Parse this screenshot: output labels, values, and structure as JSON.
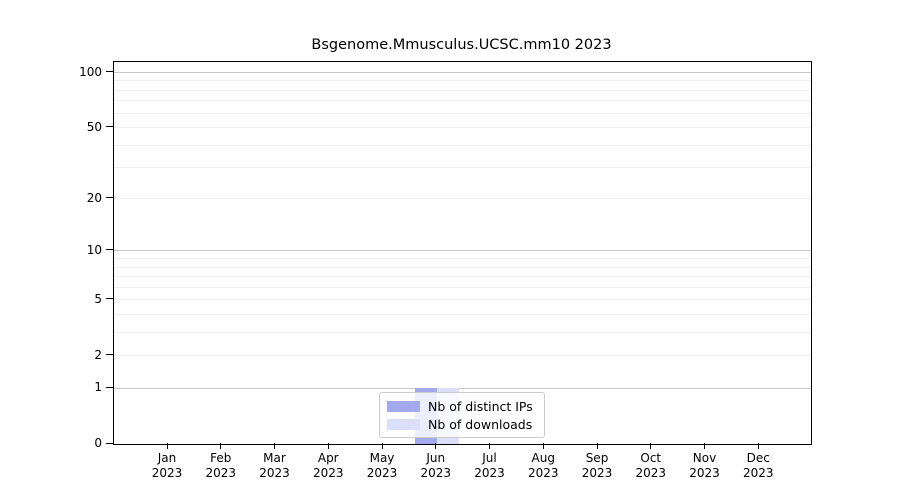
{
  "chart_data": {
    "type": "bar",
    "title": "Bsgenome.Mmusculus.UCSC.mm10 2023",
    "categories": [
      "Jan",
      "Feb",
      "Mar",
      "Apr",
      "May",
      "Jun",
      "Jul",
      "Aug",
      "Sep",
      "Oct",
      "Nov",
      "Dec"
    ],
    "x_tick_year_label": "2023",
    "series": [
      {
        "name": "Nb of distinct IPs",
        "color": "#a2a9ef",
        "values": [
          0,
          0,
          0,
          0,
          0,
          1,
          0,
          0,
          0,
          0,
          0,
          0
        ]
      },
      {
        "name": "Nb of downloads",
        "color": "#dcdff9",
        "values": [
          0,
          0,
          0,
          0,
          0,
          1,
          0,
          0,
          0,
          0,
          0,
          0
        ]
      }
    ],
    "xlabel": "",
    "ylabel": "",
    "y_axis": {
      "scale": "log1p",
      "tick_values": [
        0,
        1,
        2,
        5,
        10,
        20,
        50,
        100
      ],
      "tick_labels": [
        "0",
        "1",
        "2",
        "5",
        "10",
        "20",
        "50",
        "100"
      ],
      "major_gridline_values": [
        1,
        10,
        100
      ],
      "minor_gridline_values": [
        2,
        3,
        4,
        5,
        6,
        7,
        8,
        9,
        20,
        30,
        40,
        50,
        60,
        70,
        80,
        90
      ],
      "ylim": [
        0,
        113
      ]
    },
    "grid": true,
    "legend": {
      "position": "inside-bottom-center",
      "entries": [
        "Nb of distinct IPs",
        "Nb of downloads"
      ]
    }
  },
  "colors": {
    "distinct_ips_bar": "#a2a9ef",
    "downloads_bar": "#dcdff9",
    "major_grid": "#c8c8c8",
    "minor_grid": "#efefef",
    "axis": "#000000",
    "legend_border": "#cccccc",
    "background": "#ffffff"
  }
}
